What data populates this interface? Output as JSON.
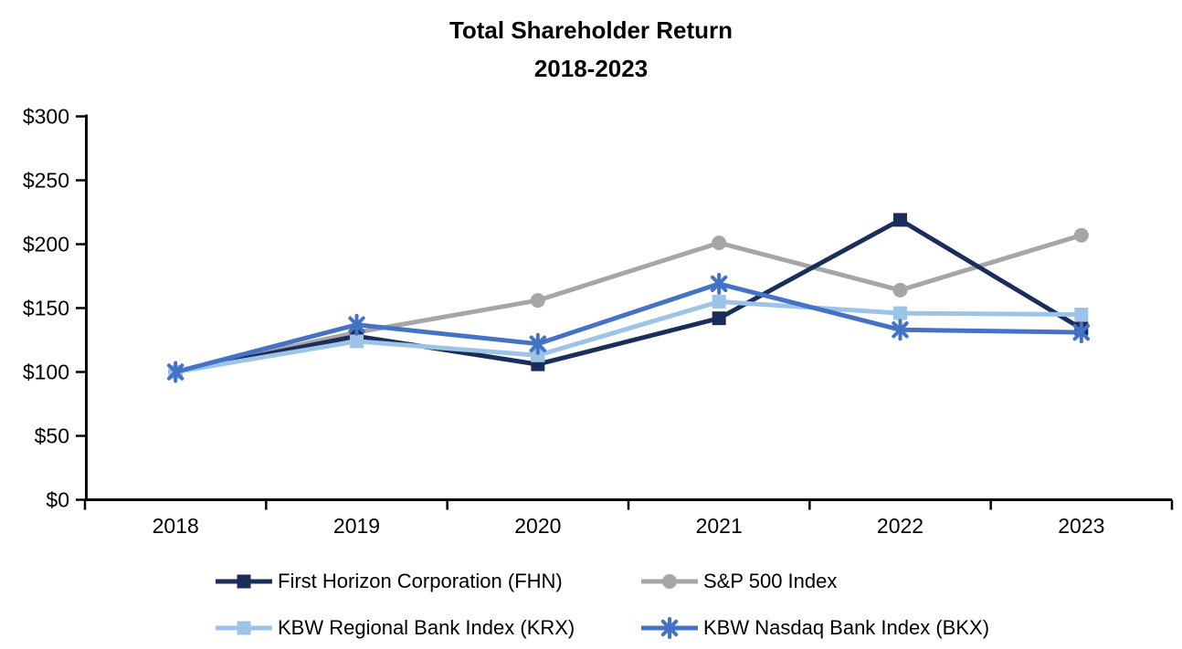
{
  "title": {
    "line1": "Total Shareholder Return",
    "line2": "2018-2023"
  },
  "chart_data": {
    "type": "line",
    "title": "Total Shareholder Return 2018-2023",
    "categories": [
      "2018",
      "2019",
      "2020",
      "2021",
      "2022",
      "2023"
    ],
    "y_axis": {
      "min": 0,
      "max": 300,
      "step": 50,
      "tick_labels": [
        "$0",
        "$50",
        "$100",
        "$150",
        "$200",
        "$250",
        "$300"
      ]
    },
    "grid": false,
    "legend_position": "bottom",
    "axis_color": "#000000",
    "series": [
      {
        "name": "S&P 500 Index",
        "color": "#A6A6A6",
        "marker": "circle",
        "values": [
          100,
          131,
          156,
          201,
          164,
          207
        ]
      },
      {
        "name": "First Horizon Corporation (FHN)",
        "color": "#1B2E5B",
        "marker": "square",
        "values": [
          100,
          128,
          106,
          142,
          219,
          134
        ]
      },
      {
        "name": "KBW Regional Bank Index (KRX)",
        "color": "#9DC3E6",
        "marker": "square",
        "values": [
          100,
          124,
          113,
          155,
          146,
          145
        ]
      },
      {
        "name": "KBW Nasdaq Bank Index (BKX)",
        "color": "#4472C4",
        "marker": "star",
        "values": [
          100,
          137,
          122,
          169,
          133,
          131
        ]
      }
    ],
    "legend_order": [
      1,
      0,
      2,
      3
    ]
  }
}
